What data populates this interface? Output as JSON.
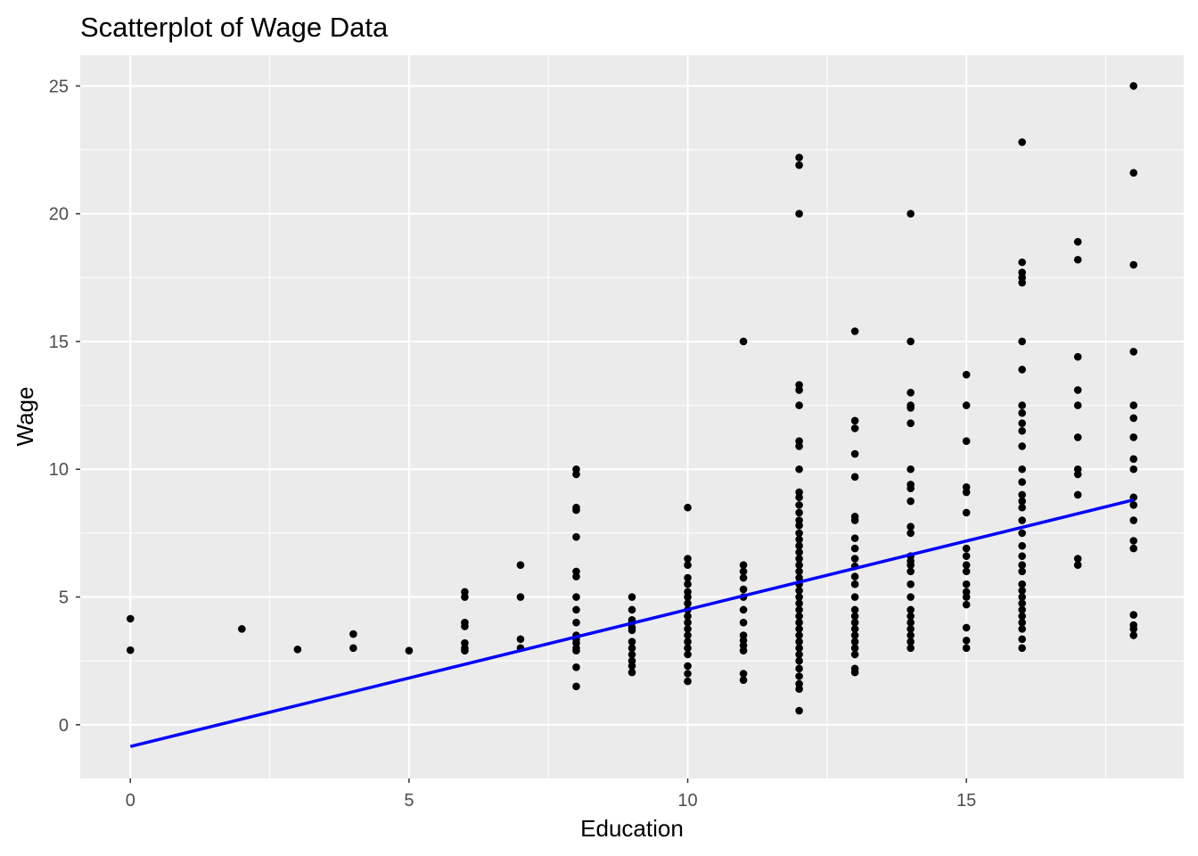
{
  "chart_data": {
    "type": "scatter",
    "title": "Scatterplot of Wage Data",
    "xlabel": "Education",
    "ylabel": "Wage",
    "xlim": [
      -0.9,
      18.9
    ],
    "ylim": [
      -2.1,
      26.2
    ],
    "x_ticks": [
      0,
      5,
      10,
      15
    ],
    "y_ticks": [
      0,
      5,
      10,
      15,
      20,
      25
    ],
    "grid": true,
    "colors": {
      "panel": "#ebebeb",
      "grid": "#ffffff",
      "points": "#000000",
      "fit_line": "#0000ff"
    },
    "fit_line": {
      "type": "linear",
      "x": [
        0,
        18
      ],
      "y": [
        -0.85,
        8.8
      ]
    },
    "points_by_x": [
      {
        "x": 0,
        "y": [
          4.15,
          2.92
        ]
      },
      {
        "x": 2,
        "y": [
          3.75
        ]
      },
      {
        "x": 3,
        "y": [
          2.95
        ]
      },
      {
        "x": 4,
        "y": [
          3.55,
          3.0
        ]
      },
      {
        "x": 5,
        "y": [
          2.9
        ]
      },
      {
        "x": 6,
        "y": [
          5.2,
          5.0,
          4.0,
          3.85,
          3.2,
          3.0,
          2.9
        ]
      },
      {
        "x": 7,
        "y": [
          6.25,
          5.0,
          3.35,
          3.0
        ]
      },
      {
        "x": 8,
        "y": [
          10.0,
          9.8,
          8.5,
          8.4,
          7.35,
          6.0,
          5.8,
          5.0,
          4.5,
          4.0,
          3.5,
          3.35,
          3.2,
          3.0,
          2.9,
          2.25,
          1.5
        ]
      },
      {
        "x": 9,
        "y": [
          5.0,
          4.5,
          4.1,
          4.0,
          3.8,
          3.7,
          3.25,
          3.0,
          2.75,
          2.5,
          2.3,
          2.05
        ]
      },
      {
        "x": 10,
        "y": [
          8.5,
          6.5,
          6.25,
          5.75,
          5.5,
          5.2,
          5.0,
          4.75,
          4.5,
          4.25,
          4.0,
          3.75,
          3.5,
          3.25,
          3.0,
          2.75,
          2.3,
          2.0,
          1.7
        ]
      },
      {
        "x": 11,
        "y": [
          15.0,
          6.25,
          6.0,
          5.75,
          5.3,
          5.0,
          4.5,
          4.0,
          3.5,
          3.3,
          3.1,
          2.9,
          2.0,
          1.75
        ]
      },
      {
        "x": 12,
        "y": [
          22.2,
          21.9,
          20.0,
          13.3,
          13.1,
          12.5,
          11.1,
          10.9,
          10.0,
          9.1,
          8.9,
          8.6,
          8.3,
          8.0,
          7.8,
          7.5,
          7.25,
          7.0,
          6.75,
          6.5,
          6.25,
          6.0,
          5.75,
          5.5,
          5.25,
          5.0,
          4.75,
          4.5,
          4.25,
          4.0,
          3.75,
          3.5,
          3.25,
          3.0,
          2.75,
          2.5,
          2.2,
          1.9,
          1.6,
          1.4,
          0.55
        ]
      },
      {
        "x": 13,
        "y": [
          15.4,
          11.9,
          11.6,
          10.6,
          9.7,
          8.15,
          8.0,
          7.3,
          6.9,
          6.5,
          6.2,
          5.8,
          5.5,
          5.0,
          4.5,
          4.25,
          4.0,
          3.75,
          3.5,
          3.25,
          3.0,
          2.75,
          2.2,
          2.05
        ]
      },
      {
        "x": 14,
        "y": [
          20.0,
          15.0,
          13.0,
          12.5,
          12.4,
          11.8,
          10.0,
          9.4,
          9.25,
          8.75,
          7.75,
          7.5,
          6.6,
          6.4,
          6.25,
          6.0,
          5.5,
          5.0,
          4.5,
          4.25,
          4.0,
          3.75,
          3.5,
          3.25,
          3.0
        ]
      },
      {
        "x": 15,
        "y": [
          13.7,
          12.5,
          11.1,
          9.3,
          9.1,
          8.3,
          6.9,
          6.6,
          6.25,
          6.0,
          5.5,
          5.2,
          5.0,
          4.7,
          3.8,
          3.3,
          3.0
        ]
      },
      {
        "x": 16,
        "y": [
          22.8,
          18.1,
          17.7,
          17.5,
          17.3,
          15.0,
          13.9,
          12.5,
          12.2,
          11.8,
          11.5,
          10.9,
          10.0,
          9.5,
          9.0,
          8.75,
          8.5,
          8.0,
          7.5,
          7.0,
          6.6,
          6.25,
          6.0,
          5.5,
          5.25,
          5.0,
          4.75,
          4.5,
          4.25,
          4.0,
          3.75,
          3.35,
          3.0
        ]
      },
      {
        "x": 17,
        "y": [
          18.9,
          18.2,
          14.4,
          13.1,
          12.5,
          11.25,
          10.0,
          9.8,
          9.0,
          6.5,
          6.25
        ]
      },
      {
        "x": 18,
        "y": [
          25.0,
          21.6,
          18.0,
          14.6,
          12.5,
          12.0,
          11.25,
          10.4,
          10.0,
          8.9,
          8.6,
          8.0,
          7.2,
          6.9,
          4.3,
          3.9,
          3.75,
          3.5
        ]
      }
    ]
  }
}
